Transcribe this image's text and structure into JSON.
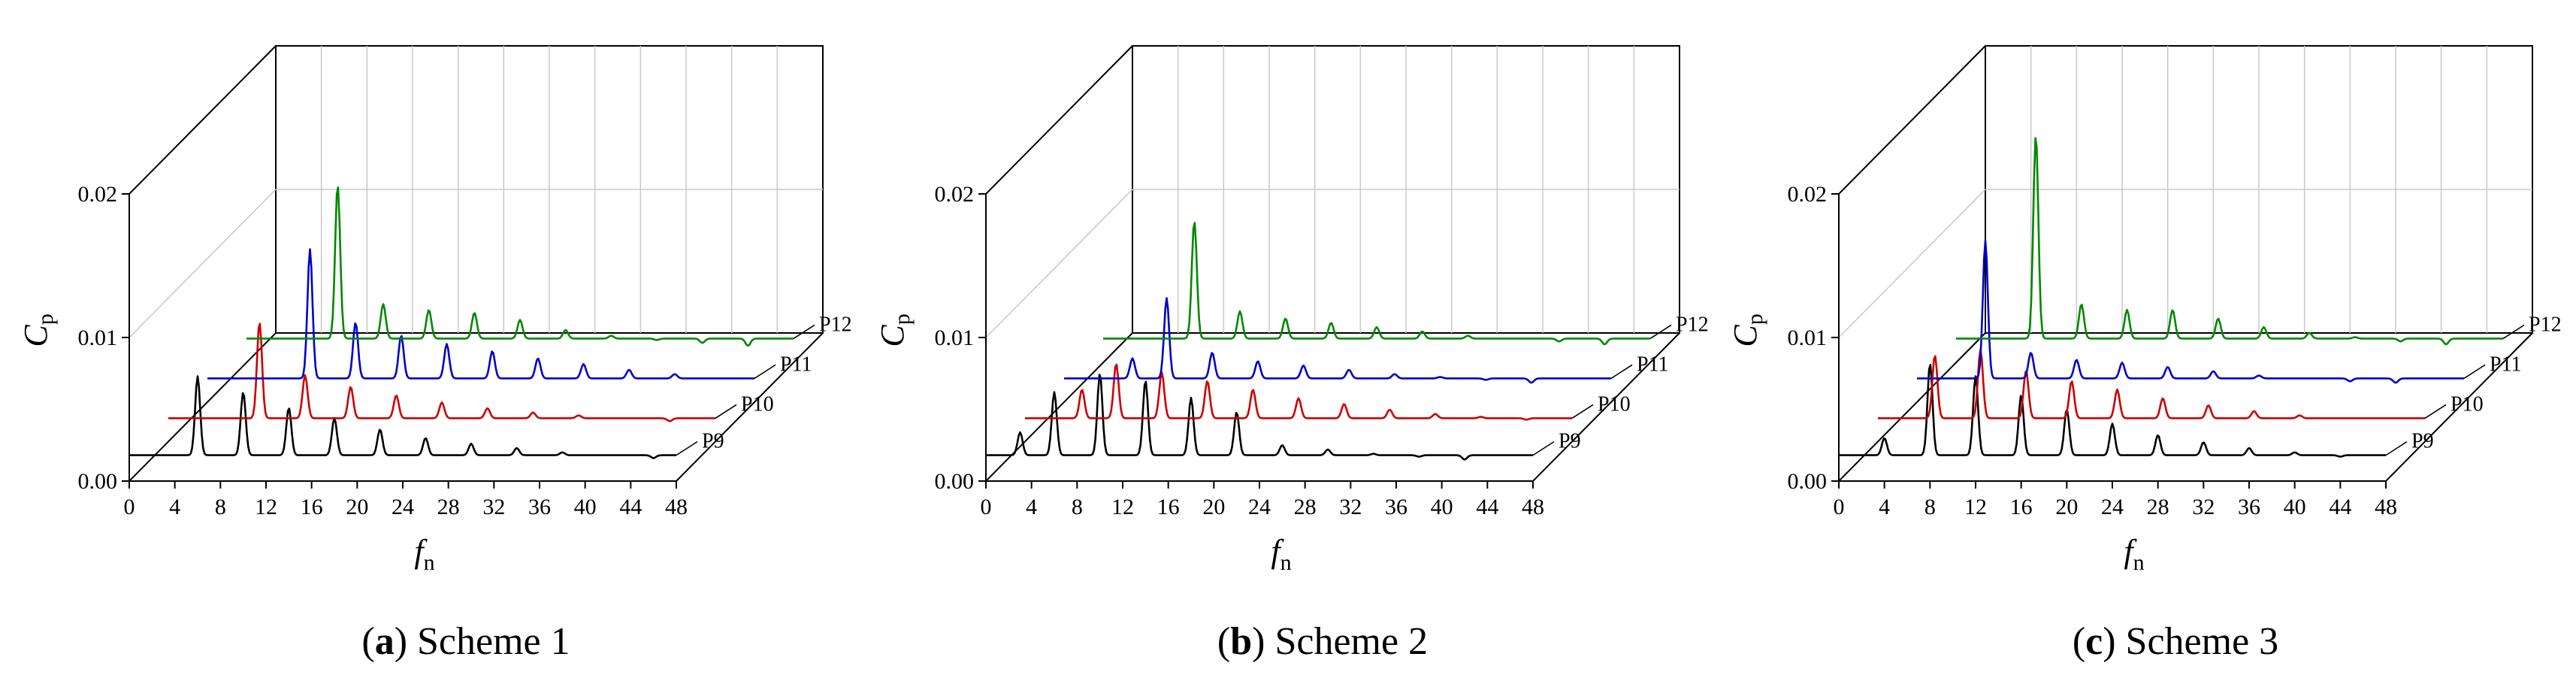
{
  "chart_data": [
    {
      "type": "line",
      "caption_letter": "a",
      "caption_text": ") Scheme 1",
      "xlabel": "f",
      "xlabel_sub": "n",
      "ylabel": "C",
      "ylabel_sub": "p",
      "xticks": [
        "0",
        "4",
        "8",
        "12",
        "16",
        "20",
        "24",
        "28",
        "32",
        "36",
        "40",
        "44",
        "48"
      ],
      "yticks": [
        "0.00",
        "0.01",
        "0.02"
      ],
      "xlim": [
        0,
        48
      ],
      "ylim": [
        0,
        0.02
      ],
      "series": [
        {
          "name": "P9",
          "color": "#000000",
          "baseline": 0.0018,
          "peaks": [
            [
              6,
              0.0073
            ],
            [
              10,
              0.0062
            ],
            [
              14,
              0.0051
            ],
            [
              18,
              0.0044
            ],
            [
              22,
              0.0036
            ],
            [
              26,
              0.003
            ],
            [
              30,
              0.0026
            ],
            [
              34,
              0.0023
            ],
            [
              38,
              0.002
            ],
            [
              42,
              0.0018
            ],
            [
              46,
              0.0016
            ]
          ]
        },
        {
          "name": "P10",
          "color": "#cc0000",
          "baseline": 0.0016,
          "peaks": [
            [
              5,
              0.0016
            ],
            [
              8,
              0.0083
            ],
            [
              12,
              0.0046
            ],
            [
              16,
              0.0038
            ],
            [
              20,
              0.0032
            ],
            [
              24,
              0.0027
            ],
            [
              28,
              0.0023
            ],
            [
              32,
              0.002
            ],
            [
              36,
              0.0018
            ],
            [
              40,
              0.0016
            ],
            [
              44,
              0.0014
            ]
          ]
        },
        {
          "name": "P11",
          "color": "#0000cc",
          "baseline": 0.0016,
          "peaks": [
            [
              9,
              0.0106
            ],
            [
              13,
              0.0055
            ],
            [
              17,
              0.0046
            ],
            [
              21,
              0.004
            ],
            [
              25,
              0.0035
            ],
            [
              29,
              0.003
            ],
            [
              33,
              0.0026
            ],
            [
              37,
              0.0022
            ],
            [
              41,
              0.0019
            ],
            [
              45,
              0.0016
            ]
          ]
        },
        {
          "name": "P12",
          "color": "#008800",
          "baseline": 0.0016,
          "peaks": [
            [
              8,
              0.0123
            ],
            [
              12,
              0.004
            ],
            [
              16,
              0.0036
            ],
            [
              20,
              0.0034
            ],
            [
              24,
              0.0029
            ],
            [
              28,
              0.0022
            ],
            [
              32,
              0.0018
            ],
            [
              36,
              0.0015
            ],
            [
              40,
              0.0013
            ],
            [
              44,
              0.0011
            ]
          ]
        }
      ]
    },
    {
      "type": "line",
      "caption_letter": "b",
      "caption_text": ") Scheme 2",
      "xlabel": "f",
      "xlabel_sub": "n",
      "ylabel": "C",
      "ylabel_sub": "p",
      "xticks": [
        "0",
        "4",
        "8",
        "12",
        "16",
        "20",
        "24",
        "28",
        "32",
        "36",
        "40",
        "44",
        "48"
      ],
      "yticks": [
        "0.00",
        "0.01",
        "0.02"
      ],
      "xlim": [
        0,
        48
      ],
      "ylim": [
        0,
        0.02
      ],
      "series": [
        {
          "name": "P9",
          "color": "#000000",
          "baseline": 0.0018,
          "peaks": [
            [
              3,
              0.0034
            ],
            [
              6,
              0.0062
            ],
            [
              10,
              0.0075
            ],
            [
              14,
              0.007
            ],
            [
              18,
              0.0058
            ],
            [
              22,
              0.0048
            ],
            [
              26,
              0.0025
            ],
            [
              30,
              0.0022
            ],
            [
              34,
              0.0019
            ],
            [
              38,
              0.0017
            ],
            [
              42,
              0.0015
            ]
          ]
        },
        {
          "name": "P10",
          "color": "#cc0000",
          "baseline": 0.0016,
          "peaks": [
            [
              5,
              0.0036
            ],
            [
              8,
              0.0054
            ],
            [
              12,
              0.0048
            ],
            [
              16,
              0.0042
            ],
            [
              20,
              0.0036
            ],
            [
              24,
              0.003
            ],
            [
              28,
              0.0026
            ],
            [
              32,
              0.0022
            ],
            [
              36,
              0.0019
            ],
            [
              40,
              0.0017
            ],
            [
              44,
              0.0015
            ]
          ]
        },
        {
          "name": "P11",
          "color": "#0000cc",
          "baseline": 0.0016,
          "peaks": [
            [
              6,
              0.003
            ],
            [
              9,
              0.0072
            ],
            [
              13,
              0.0034
            ],
            [
              17,
              0.0028
            ],
            [
              21,
              0.0025
            ],
            [
              25,
              0.0022
            ],
            [
              29,
              0.0019
            ],
            [
              33,
              0.0017
            ],
            [
              37,
              0.0015
            ],
            [
              41,
              0.0013
            ]
          ]
        },
        {
          "name": "P12",
          "color": "#008800",
          "baseline": 0.0016,
          "peaks": [
            [
              8,
              0.0098
            ],
            [
              12,
              0.0035
            ],
            [
              16,
              0.003
            ],
            [
              20,
              0.0027
            ],
            [
              24,
              0.0024
            ],
            [
              28,
              0.0021
            ],
            [
              32,
              0.0018
            ],
            [
              36,
              0.0016
            ],
            [
              40,
              0.0014
            ],
            [
              44,
              0.0012
            ]
          ]
        }
      ]
    },
    {
      "type": "line",
      "caption_letter": "c",
      "caption_text": ") Scheme 3",
      "xlabel": "f",
      "xlabel_sub": "n",
      "ylabel": "C",
      "ylabel_sub": "p",
      "xticks": [
        "0",
        "4",
        "8",
        "12",
        "16",
        "20",
        "24",
        "28",
        "32",
        "36",
        "40",
        "44",
        "48"
      ],
      "yticks": [
        "0.00",
        "0.01",
        "0.02"
      ],
      "xlim": [
        0,
        48
      ],
      "ylim": [
        0,
        0.02
      ],
      "series": [
        {
          "name": "P9",
          "color": "#000000",
          "baseline": 0.0018,
          "peaks": [
            [
              4,
              0.003
            ],
            [
              8,
              0.0082
            ],
            [
              12,
              0.0073
            ],
            [
              16,
              0.006
            ],
            [
              20,
              0.005
            ],
            [
              24,
              0.004
            ],
            [
              28,
              0.0032
            ],
            [
              32,
              0.0027
            ],
            [
              36,
              0.0023
            ],
            [
              40,
              0.002
            ],
            [
              44,
              0.0017
            ]
          ]
        },
        {
          "name": "P10",
          "color": "#cc0000",
          "baseline": 0.0016,
          "peaks": [
            [
              5,
              0.006
            ],
            [
              9,
              0.0064
            ],
            [
              13,
              0.0049
            ],
            [
              17,
              0.0042
            ],
            [
              21,
              0.0036
            ],
            [
              25,
              0.003
            ],
            [
              29,
              0.0025
            ],
            [
              33,
              0.0021
            ],
            [
              37,
              0.0018
            ],
            [
              41,
              0.0016
            ]
          ]
        },
        {
          "name": "P11",
          "color": "#0000cc",
          "baseline": 0.0016,
          "peaks": [
            [
              6,
              0.0112
            ],
            [
              10,
              0.0034
            ],
            [
              14,
              0.0029
            ],
            [
              18,
              0.0027
            ],
            [
              22,
              0.0024
            ],
            [
              26,
              0.0021
            ],
            [
              30,
              0.0018
            ],
            [
              34,
              0.0016
            ],
            [
              38,
              0.0014
            ],
            [
              42,
              0.0013
            ]
          ]
        },
        {
          "name": "P12",
          "color": "#008800",
          "baseline": 0.0016,
          "peaks": [
            [
              7,
              0.0158
            ],
            [
              11,
              0.004
            ],
            [
              15,
              0.0036
            ],
            [
              19,
              0.0036
            ],
            [
              23,
              0.003
            ],
            [
              27,
              0.0024
            ],
            [
              31,
              0.002
            ],
            [
              35,
              0.0017
            ],
            [
              39,
              0.0014
            ],
            [
              43,
              0.0012
            ]
          ]
        }
      ]
    }
  ]
}
